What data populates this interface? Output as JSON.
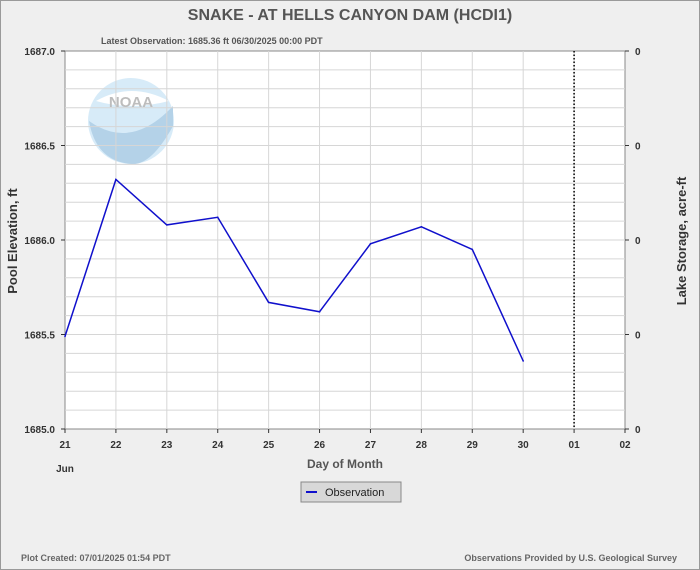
{
  "title": "SNAKE - AT HELLS CANYON DAM  (HCDI1)",
  "latest_observation": "Latest Observation: 1685.36 ft 06/30/2025 00:00 PDT",
  "footer_left": "Plot Created: 07/01/2025 01:54 PDT",
  "footer_right": "Observations Provided by U.S. Geological Survey",
  "logo_text": "NOAA",
  "colors": {
    "series": "#1010cc",
    "grid": "#d6d6d6",
    "plot_bg": "#ffffff"
  },
  "chart_data": {
    "type": "line",
    "xlabel": "Day of Month",
    "ylabel": "Pool Elevation, ft",
    "y2label": "Lake Storage, acre-ft",
    "x_ticks": [
      "21",
      "22",
      "23",
      "24",
      "25",
      "26",
      "27",
      "28",
      "29",
      "30",
      "01",
      "02"
    ],
    "x_month_label": "Jun",
    "xlim": [
      0,
      11
    ],
    "ylim": [
      1685.0,
      1687.0
    ],
    "y_ticks": [
      "1685.0",
      "1685.5",
      "1686.0",
      "1686.5",
      "1687.0"
    ],
    "y2_ticks": [
      "0",
      "0",
      "0",
      "0",
      "0"
    ],
    "today_marker_x": 10,
    "grid": true,
    "legend": "bottom-center",
    "series": [
      {
        "name": "Observation",
        "x": [
          0,
          1,
          2,
          3,
          4,
          5,
          6,
          7,
          8,
          9
        ],
        "values": [
          1685.49,
          1686.32,
          1686.08,
          1686.12,
          1685.67,
          1685.62,
          1685.98,
          1686.07,
          1685.95,
          1685.36
        ]
      }
    ]
  }
}
